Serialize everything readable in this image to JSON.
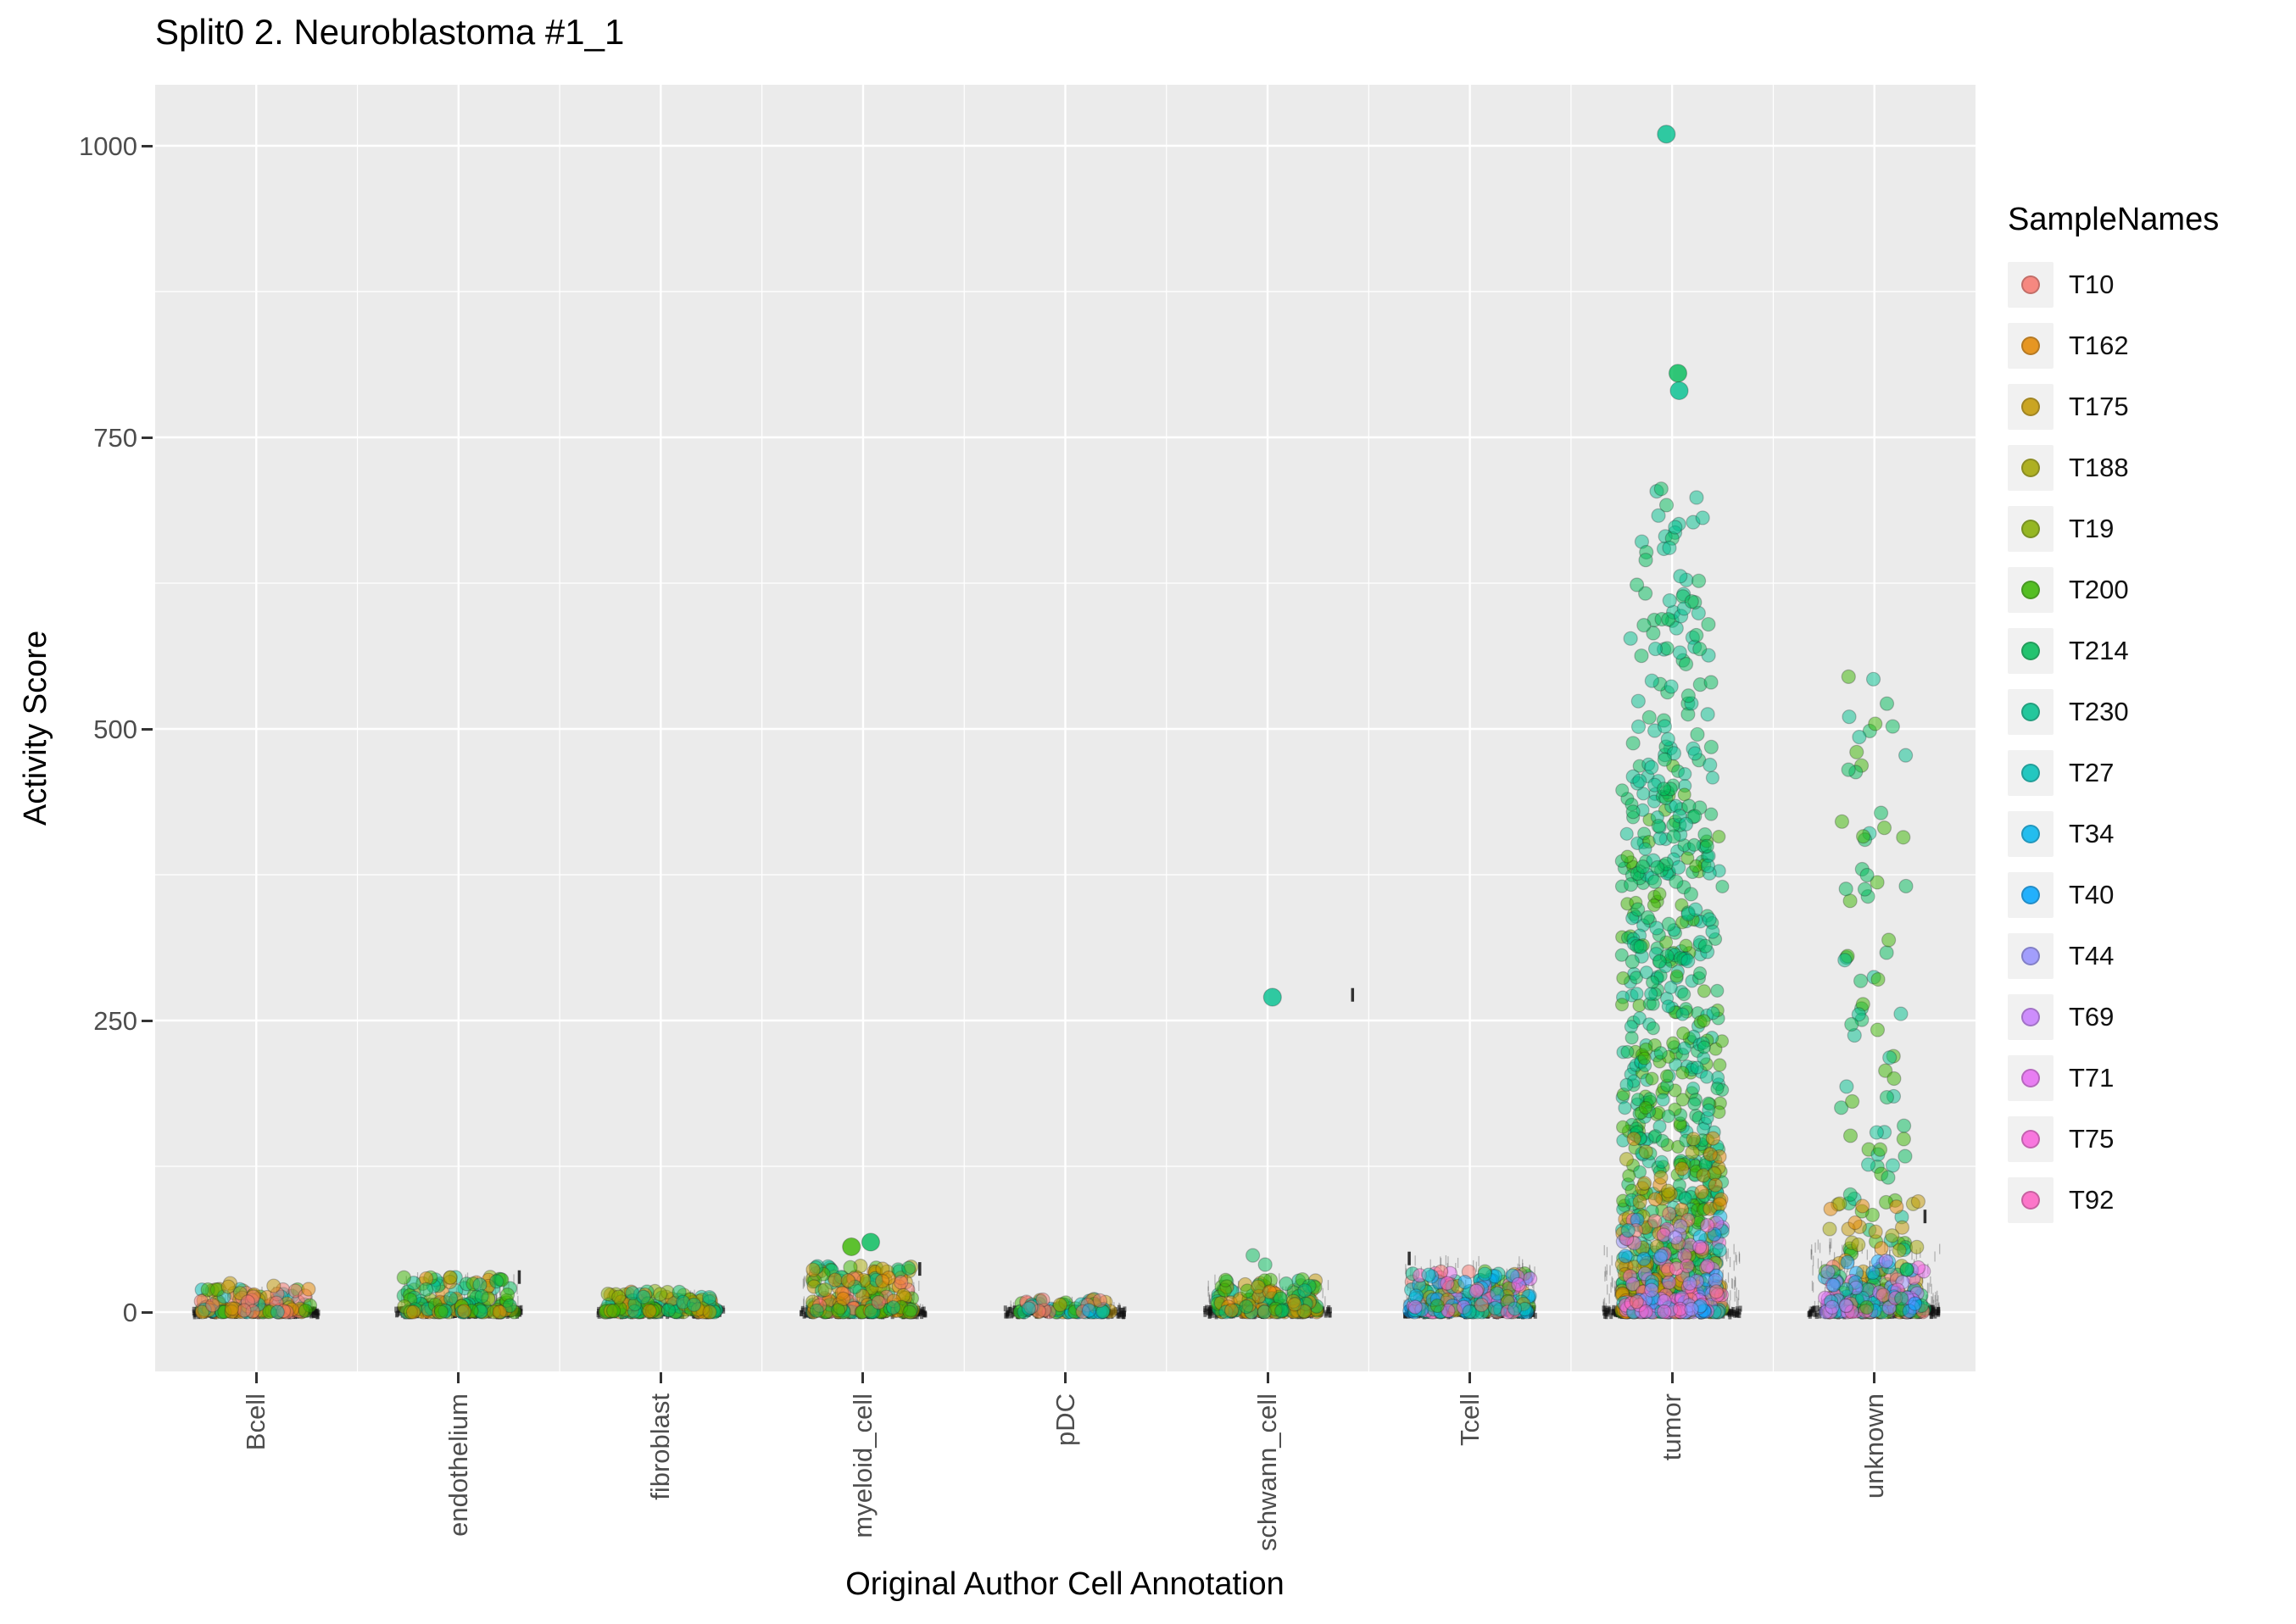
{
  "title": "Split0 2. Neuroblastoma #1_1",
  "x_axis_label": "Original Author Cell Annotation",
  "y_axis_label": "Activity Score",
  "legend": {
    "title": "SampleNames",
    "items": [
      "T10",
      "T162",
      "T175",
      "T188",
      "T19",
      "T200",
      "T214",
      "T230",
      "T27",
      "T34",
      "T40",
      "T44",
      "T69",
      "T71",
      "T75",
      "T92"
    ]
  },
  "chart_data": {
    "type": "scatter",
    "title": "Split0 2. Neuroblastoma #1_1",
    "xlabel": "Original Author Cell Annotation",
    "ylabel": "Activity Score",
    "ylim": [
      -45,
      1055
    ],
    "y_ticks": [
      0,
      250,
      500,
      750,
      1000
    ],
    "y_minor": [
      125,
      375,
      625,
      875
    ],
    "grid": true,
    "legend_position": "right",
    "panel_bg": "#EBEBEB",
    "categories": [
      "Bcell",
      "endothelium",
      "fibroblast",
      "myeloid_cell",
      "pDC",
      "schwann_cell",
      "Tcell",
      "tumor",
      "unknown"
    ],
    "samples": {
      "T10": "#F8766D",
      "T162": "#E58700",
      "T175": "#C49800",
      "T188": "#A3A500",
      "T19": "#85AD00",
      "T200": "#39B600",
      "T214": "#00BC59",
      "T230": "#00C08E",
      "T27": "#00C0B8",
      "T34": "#00B5EE",
      "T40": "#00A5FF",
      "T44": "#9590FF",
      "T69": "#C77CFF",
      "T71": "#E76BF3",
      "T75": "#FA62DB",
      "T92": "#FF61C3"
    },
    "clouds": [
      {
        "category": "Bcell",
        "colors": [
          "T175",
          "T188",
          "T162",
          "T10",
          "T27",
          "T200"
        ],
        "count": 130,
        "y0": 0,
        "y1": 20,
        "power": 2.6,
        "xspread": 0.55
      },
      {
        "category": "Bcell",
        "colors": [
          "T175"
        ],
        "count": 3,
        "y0": 18,
        "y1": 26,
        "power": 1,
        "xspread": 0.3
      },
      {
        "category": "endothelium",
        "colors": [
          "T200",
          "T214",
          "T19",
          "T230",
          "T162"
        ],
        "count": 140,
        "y0": 0,
        "y1": 30,
        "power": 2.4,
        "xspread": 0.55
      },
      {
        "category": "fibroblast",
        "colors": [
          "T200",
          "T214",
          "T175",
          "T19",
          "T230",
          "T162"
        ],
        "count": 140,
        "y0": 0,
        "y1": 18,
        "power": 2.4,
        "xspread": 0.55
      },
      {
        "category": "myeloid_cell",
        "colors": [
          "T162",
          "T175",
          "T200",
          "T214",
          "T10",
          "T230",
          "T188"
        ],
        "count": 190,
        "y0": 0,
        "y1": 40,
        "power": 2.2,
        "xspread": 0.5
      },
      {
        "category": "pDC",
        "colors": [
          "T27",
          "T34",
          "T200",
          "T175",
          "T10",
          "T230"
        ],
        "count": 70,
        "y0": 0,
        "y1": 12,
        "power": 2.2,
        "xspread": 0.45
      },
      {
        "category": "schwann_cell",
        "colors": [
          "T200",
          "T214",
          "T230",
          "T175",
          "T162"
        ],
        "count": 140,
        "y0": 0,
        "y1": 28,
        "power": 2.4,
        "xspread": 0.5
      },
      {
        "category": "schwann_cell",
        "colors": [
          "T230",
          "T214"
        ],
        "count": 2,
        "y0": 40,
        "y1": 58,
        "power": 1,
        "xspread": 0.2
      },
      {
        "category": "Tcell",
        "colors": [
          "T27",
          "T34",
          "T40",
          "T230",
          "T200",
          "T175",
          "T10",
          "T71",
          "T92"
        ],
        "count": 230,
        "y0": 0,
        "y1": 35,
        "power": 2.0,
        "xspread": 0.6
      },
      {
        "category": "tumor",
        "colors": [
          "T214",
          "T200",
          "T230"
        ],
        "count": 650,
        "y0": 0,
        "y1": 470,
        "power": 2.0,
        "xspread": 0.5,
        "r": 7.5
      },
      {
        "category": "tumor",
        "colors": [
          "T214",
          "T230"
        ],
        "count": 110,
        "y0": 300,
        "y1": 600,
        "power": 1.5,
        "xspread": 0.42
      },
      {
        "category": "tumor",
        "colors": [
          "T214",
          "T230"
        ],
        "count": 40,
        "y0": 560,
        "y1": 715,
        "power": 1.3,
        "xspread": 0.35
      },
      {
        "category": "tumor",
        "colors": [
          "T175",
          "T188",
          "T162"
        ],
        "count": 130,
        "y0": 0,
        "y1": 150,
        "power": 2.6,
        "xspread": 0.5
      },
      {
        "category": "tumor",
        "colors": [
          "T34",
          "T40",
          "T44",
          "T69",
          "T71",
          "T75",
          "T92",
          "T10",
          "T27"
        ],
        "count": 160,
        "y0": 0,
        "y1": 85,
        "power": 2.6,
        "xspread": 0.5
      },
      {
        "category": "unknown",
        "colors": [
          "T214",
          "T230",
          "T200"
        ],
        "count": 85,
        "y0": 50,
        "y1": 545,
        "power": 1.6,
        "xspread": 0.33
      },
      {
        "category": "unknown",
        "colors": [
          "T175",
          "T162",
          "T188"
        ],
        "count": 70,
        "y0": 0,
        "y1": 95,
        "power": 2.3,
        "xspread": 0.45
      },
      {
        "category": "unknown",
        "colors": [
          "T10",
          "T27",
          "T34",
          "T40",
          "T44",
          "T69",
          "T71",
          "T75",
          "T92",
          "T200",
          "T214"
        ],
        "count": 160,
        "y0": 0,
        "y1": 45,
        "power": 2.4,
        "xspread": 0.5
      }
    ],
    "outliers": [
      {
        "category": "tumor",
        "y": 1010,
        "color": "T230"
      },
      {
        "category": "tumor",
        "y": 805,
        "color": "T214"
      },
      {
        "category": "tumor",
        "y": 790,
        "color": "T230"
      },
      {
        "category": "schwann_cell",
        "y": 270,
        "color": "T230"
      },
      {
        "category": "myeloid_cell",
        "y": 60,
        "color": "T214"
      },
      {
        "category": "myeloid_cell",
        "y": 56,
        "color": "T200"
      }
    ],
    "strips": [
      {
        "category": "Bcell",
        "count": 180,
        "xspread": 0.62
      },
      {
        "category": "endothelium",
        "count": 180,
        "xspread": 0.62
      },
      {
        "category": "fibroblast",
        "count": 180,
        "xspread": 0.62
      },
      {
        "category": "myeloid_cell",
        "count": 200,
        "xspread": 0.62
      },
      {
        "category": "pDC",
        "count": 170,
        "xspread": 0.6
      },
      {
        "category": "schwann_cell",
        "count": 180,
        "xspread": 0.62
      },
      {
        "category": "Tcell",
        "count": 220,
        "xspread": 0.65
      },
      {
        "category": "tumor",
        "count": 260,
        "xspread": 0.68
      },
      {
        "category": "unknown",
        "count": 220,
        "xspread": 0.65
      }
    ],
    "fuzz": [
      {
        "category": "Bcell",
        "count": 60,
        "y_max": 18,
        "xspread": 0.6
      },
      {
        "category": "endothelium",
        "count": 80,
        "y_max": 30,
        "xspread": 0.6
      },
      {
        "category": "fibroblast",
        "count": 60,
        "y_max": 15,
        "xspread": 0.6
      },
      {
        "category": "myeloid_cell",
        "count": 90,
        "y_max": 35,
        "xspread": 0.6
      },
      {
        "category": "pDC",
        "count": 40,
        "y_max": 10,
        "xspread": 0.55
      },
      {
        "category": "schwann_cell",
        "count": 70,
        "y_max": 30,
        "xspread": 0.6
      },
      {
        "category": "Tcell",
        "count": 160,
        "y_max": 45,
        "xspread": 0.65
      },
      {
        "category": "tumor",
        "count": 260,
        "y_max": 55,
        "xspread": 0.68
      },
      {
        "category": "unknown",
        "count": 200,
        "y_max": 60,
        "xspread": 0.65
      }
    ],
    "dash_marks": [
      {
        "category": "endothelium",
        "y": 30,
        "dx": 0.3
      },
      {
        "category": "myeloid_cell",
        "y": 37,
        "dx": 0.28
      },
      {
        "category": "schwann_cell",
        "y": 272,
        "dx": 0.42
      },
      {
        "category": "Tcell",
        "y": 46,
        "dx": -0.3
      },
      {
        "category": "unknown",
        "y": 82,
        "dx": 0.25
      }
    ]
  }
}
